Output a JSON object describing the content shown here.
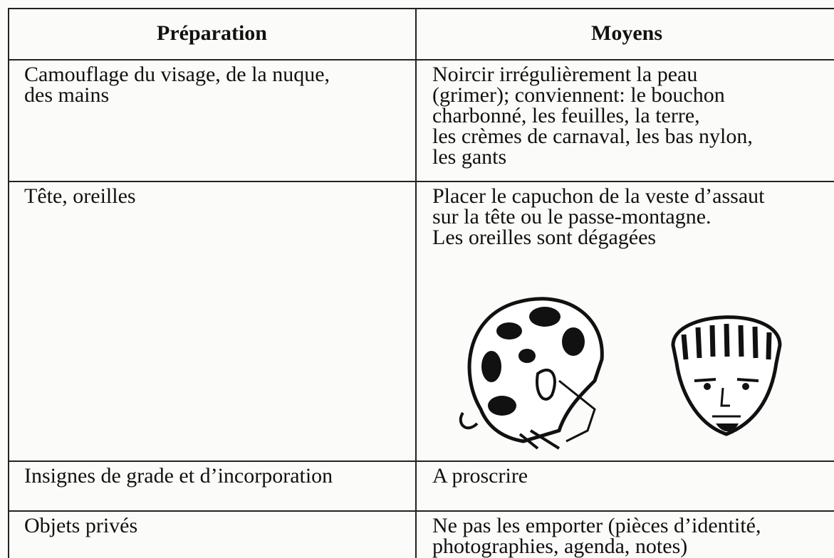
{
  "table": {
    "header": [
      "Préparation",
      "Moyens"
    ],
    "rows": [
      [
        [
          "Camouflage du visage, de la nuque,",
          "des mains"
        ],
        [
          "Noircir irrégulièrement la peau",
          "(grimer); conviennent: le bouchon",
          "charbonné, les feuilles, la terre,",
          "les crèmes de carnaval, les bas nylon,",
          "les gants"
        ]
      ],
      [
        [
          "Tête, oreilles"
        ],
        [
          "Placer le capuchon de la veste d’assaut",
          "sur la tête ou le passe-montagne.",
          "Les oreilles sont dégagées"
        ]
      ],
      [
        [
          "Insignes de grade et d’incorporation"
        ],
        [
          "A proscrire"
        ]
      ],
      [
        [
          "Objets privés"
        ],
        [
          "Ne pas les emporter (pièces d’identité,",
          "photographies, agenda, notes)"
        ]
      ]
    ]
  }
}
